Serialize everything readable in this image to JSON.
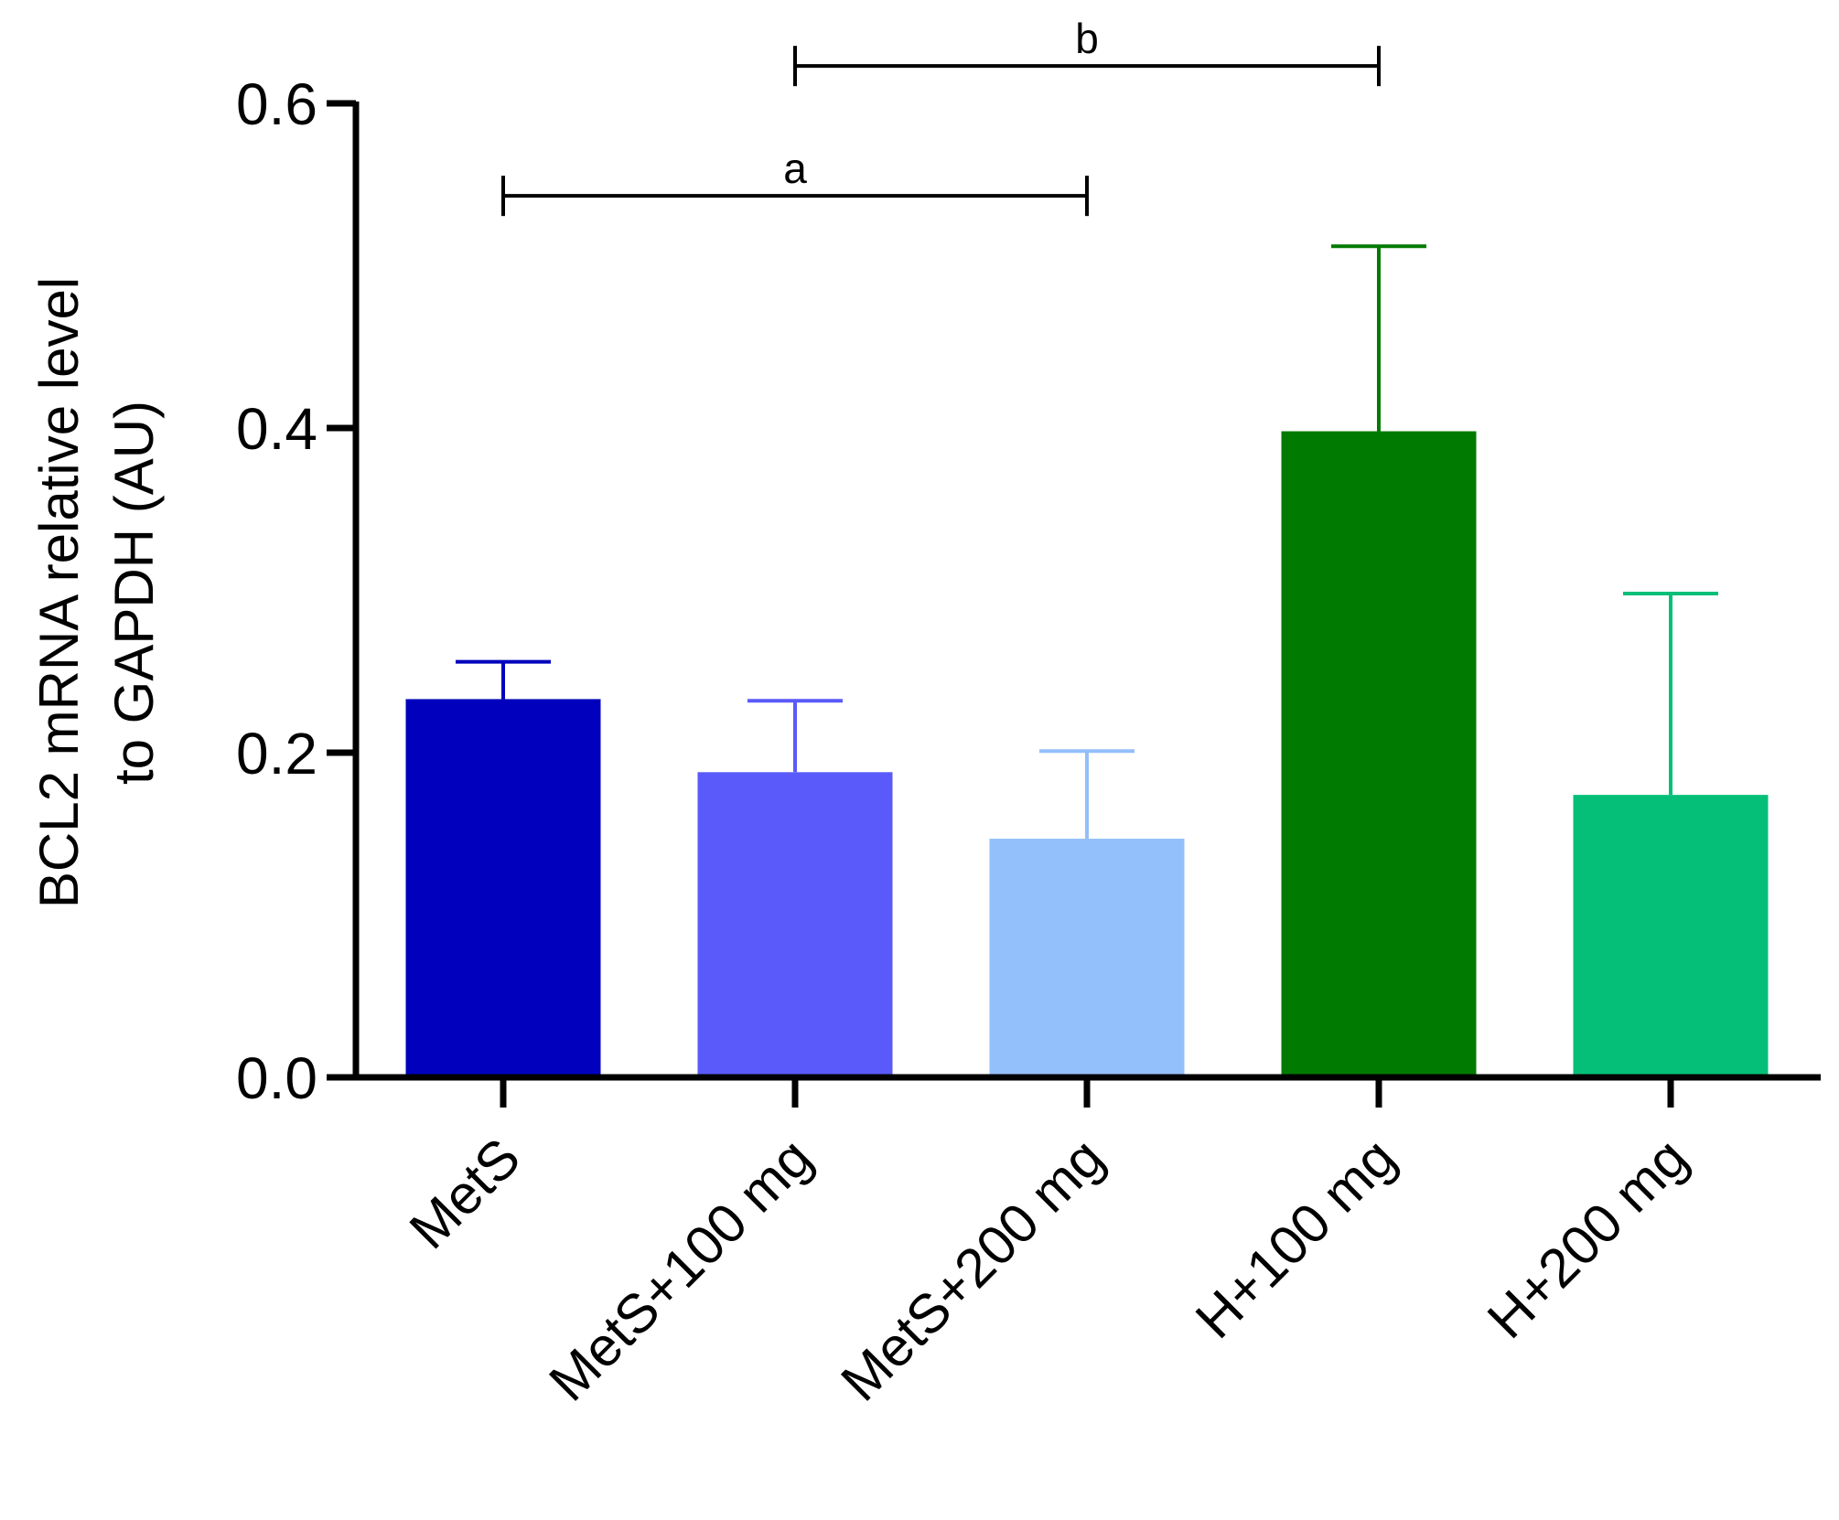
{
  "chart_data": {
    "type": "bar",
    "title": "",
    "xlabel": "",
    "ylabel_lines": [
      "BCL2 mRNA relative level",
      "to GAPDH (AU)"
    ],
    "ylim": [
      0,
      0.6
    ],
    "yticks": [
      "0.0",
      "0.2",
      "0.4",
      "0.6"
    ],
    "ytick_values": [
      0,
      0.2,
      0.4,
      0.6
    ],
    "categories": [
      "MetS",
      "MetS+100 mg",
      "MetS+200 mg",
      "H+100 mg",
      "H+200 mg"
    ],
    "values": [
      0.233,
      0.188,
      0.147,
      0.398,
      0.174
    ],
    "error_upper": [
      0.256,
      0.232,
      0.201,
      0.512,
      0.298
    ],
    "colors": [
      "#0000BD",
      "#5A5AFA",
      "#93BFFA",
      "#007A00",
      "#05BF78"
    ],
    "significance": [
      {
        "label": "a",
        "from": 0,
        "to": 2,
        "y": 0.543
      },
      {
        "label": "b",
        "from": 1,
        "to": 3,
        "y": 0.623
      }
    ]
  }
}
